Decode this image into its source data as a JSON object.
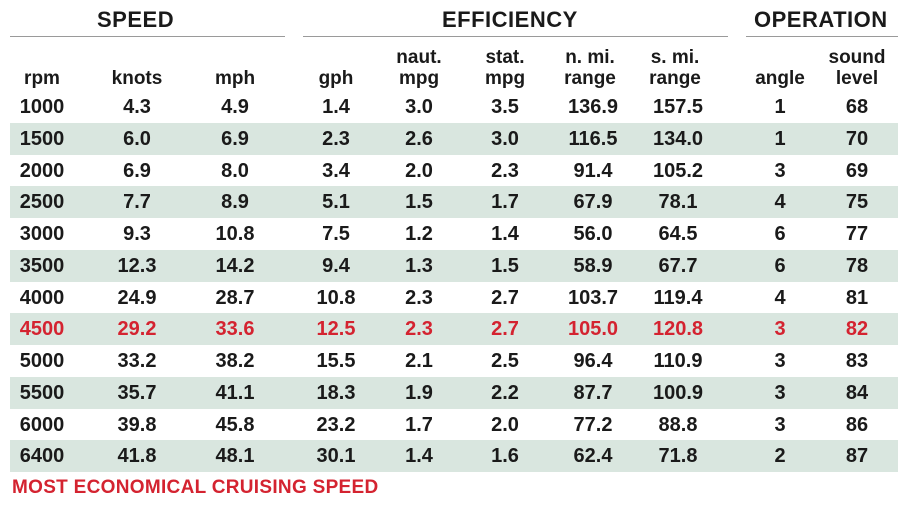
{
  "groups": {
    "speed": "SPEED",
    "efficiency": "EFFICIENCY",
    "operation": "OPERATION"
  },
  "columns": [
    "rpm",
    "knots",
    "mph",
    "gph",
    "naut.\nmpg",
    "stat.\nmpg",
    "n. mi.\nrange",
    "s. mi.\nrange",
    "angle",
    "sound\nlevel"
  ],
  "rows": [
    [
      "1000",
      "4.3",
      "4.9",
      "1.4",
      "3.0",
      "3.5",
      "136.9",
      "157.5",
      "1",
      "68"
    ],
    [
      "1500",
      "6.0",
      "6.9",
      "2.3",
      "2.6",
      "3.0",
      "116.5",
      "134.0",
      "1",
      "70"
    ],
    [
      "2000",
      "6.9",
      "8.0",
      "3.4",
      "2.0",
      "2.3",
      "91.4",
      "105.2",
      "3",
      "69"
    ],
    [
      "2500",
      "7.7",
      "8.9",
      "5.1",
      "1.5",
      "1.7",
      "67.9",
      "78.1",
      "4",
      "75"
    ],
    [
      "3000",
      "9.3",
      "10.8",
      "7.5",
      "1.2",
      "1.4",
      "56.0",
      "64.5",
      "6",
      "77"
    ],
    [
      "3500",
      "12.3",
      "14.2",
      "9.4",
      "1.3",
      "1.5",
      "58.9",
      "67.7",
      "6",
      "78"
    ],
    [
      "4000",
      "24.9",
      "28.7",
      "10.8",
      "2.3",
      "2.7",
      "103.7",
      "119.4",
      "4",
      "81"
    ],
    [
      "4500",
      "29.2",
      "33.6",
      "12.5",
      "2.3",
      "2.7",
      "105.0",
      "120.8",
      "3",
      "82"
    ],
    [
      "5000",
      "33.2",
      "38.2",
      "15.5",
      "2.1",
      "2.5",
      "96.4",
      "110.9",
      "3",
      "83"
    ],
    [
      "5500",
      "35.7",
      "41.1",
      "18.3",
      "1.9",
      "2.2",
      "87.7",
      "100.9",
      "3",
      "84"
    ],
    [
      "6000",
      "39.8",
      "45.8",
      "23.2",
      "1.7",
      "2.0",
      "77.2",
      "88.8",
      "3",
      "86"
    ],
    [
      "6400",
      "41.8",
      "48.1",
      "30.1",
      "1.4",
      "1.6",
      "62.4",
      "71.8",
      "2",
      "87"
    ]
  ],
  "highlight_row": 7,
  "footnote": "MOST ECONOMICAL CRUISING SPEED",
  "colors": {
    "highlight": "#d42330",
    "row_shade": "#d9e6df"
  }
}
